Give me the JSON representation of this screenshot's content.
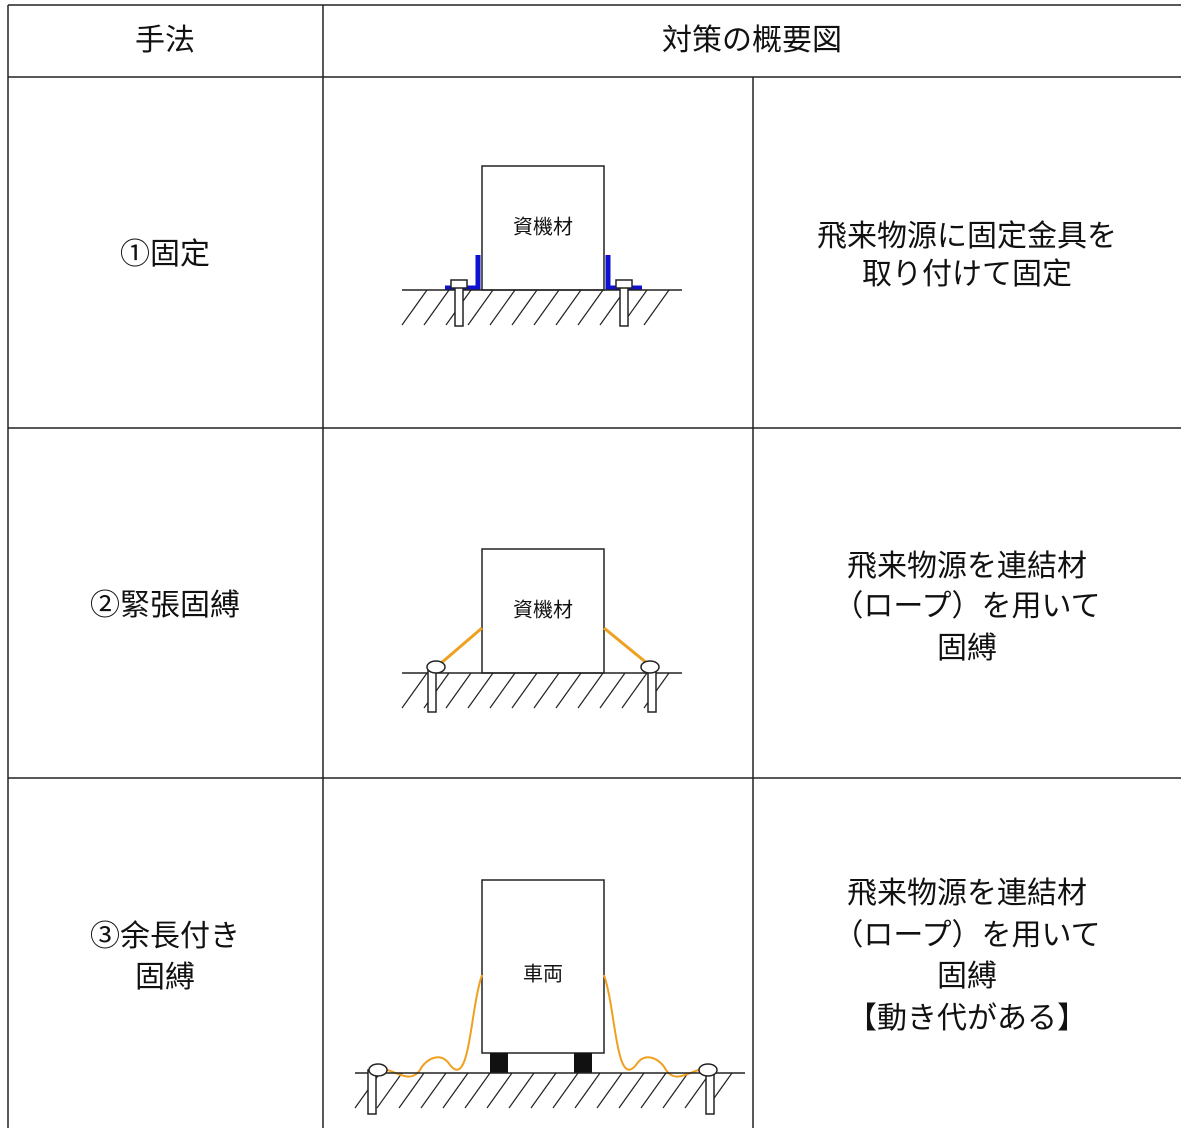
{
  "table": {
    "header": [
      "手法",
      "対策の概要図"
    ],
    "rows": [
      {
        "method": [
          "①固定"
        ],
        "figure_label": "資機材",
        "description": [
          "飛来物源に固定金具を",
          "取り付けて固定"
        ]
      },
      {
        "method": [
          "②緊張固縛"
        ],
        "figure_label": "資機材",
        "description": [
          "飛来物源を連結材",
          "（ロープ）を用いて",
          "固縛"
        ]
      },
      {
        "method": [
          "③余長付き",
          "固縛"
        ],
        "figure_label": "車両",
        "description": [
          "飛来物源を連結材",
          "（ロープ）を用いて",
          "固縛",
          "【動き代がある】"
        ]
      }
    ]
  }
}
